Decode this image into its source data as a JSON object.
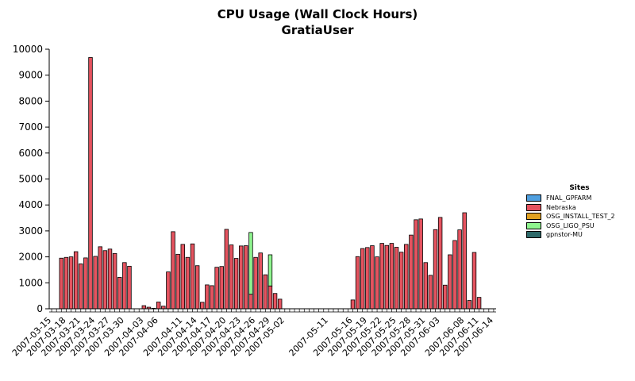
{
  "chart_data": {
    "type": "bar",
    "title": "CPU Usage (Wall Clock Hours)",
    "subtitle": "GratiaUser",
    "xlabel": "",
    "ylabel": "",
    "ylim": [
      0,
      10000
    ],
    "yticks": [
      0,
      1000,
      2000,
      3000,
      4000,
      5000,
      6000,
      7000,
      8000,
      9000,
      10000
    ],
    "grid": false,
    "legend_title": "Sites",
    "legend_position": "right",
    "x_tick_labels": [
      "2007-03-15",
      "2007-03-18",
      "2007-03-21",
      "2007-03-24",
      "2007-03-27",
      "2007-03-30",
      "2007-04-03",
      "2007-04-06",
      "2007-04-11",
      "2007-04-14",
      "2007-04-17",
      "2007-04-20",
      "2007-04-23",
      "2007-04-26",
      "2007-04-29",
      "2007-05-02",
      "2007-05-11",
      "2007-05-16",
      "2007-05-19",
      "2007-05-22",
      "2007-05-25",
      "2007-05-28",
      "2007-05-31",
      "2007-06-03",
      "2007-06-08",
      "2007-06-11",
      "2007-06-14"
    ],
    "categories": [
      "2007-03-15",
      "2007-03-16",
      "2007-03-17",
      "2007-03-18",
      "2007-03-19",
      "2007-03-20",
      "2007-03-21",
      "2007-03-22",
      "2007-03-23",
      "2007-03-24",
      "2007-03-25",
      "2007-03-26",
      "2007-03-27",
      "2007-03-28",
      "2007-03-29",
      "2007-03-30",
      "2007-03-31",
      "2007-04-01",
      "2007-04-02",
      "2007-04-03",
      "2007-04-04",
      "2007-04-05",
      "2007-04-06",
      "2007-04-07",
      "2007-04-08",
      "2007-04-09",
      "2007-04-10",
      "2007-04-11",
      "2007-04-12",
      "2007-04-13",
      "2007-04-14",
      "2007-04-15",
      "2007-04-16",
      "2007-04-17",
      "2007-04-18",
      "2007-04-19",
      "2007-04-20",
      "2007-04-21",
      "2007-04-22",
      "2007-04-23",
      "2007-04-24",
      "2007-04-25",
      "2007-04-26",
      "2007-04-27",
      "2007-04-28",
      "2007-04-29",
      "2007-04-30",
      "2007-05-01",
      "2007-05-02",
      "2007-05-03",
      "2007-05-04",
      "2007-05-05",
      "2007-05-06",
      "2007-05-07",
      "2007-05-08",
      "2007-05-09",
      "2007-05-10",
      "2007-05-11",
      "2007-05-12",
      "2007-05-13",
      "2007-05-14",
      "2007-05-15",
      "2007-05-16",
      "2007-05-17",
      "2007-05-18",
      "2007-05-19",
      "2007-05-20",
      "2007-05-21",
      "2007-05-22",
      "2007-05-23",
      "2007-05-24",
      "2007-05-25",
      "2007-05-26",
      "2007-05-27",
      "2007-05-28",
      "2007-05-29",
      "2007-05-30",
      "2007-05-31",
      "2007-06-01",
      "2007-06-02",
      "2007-06-03",
      "2007-06-04",
      "2007-06-05",
      "2007-06-06",
      "2007-06-07",
      "2007-06-08",
      "2007-06-09",
      "2007-06-10",
      "2007-06-11",
      "2007-06-12",
      "2007-06-13",
      "2007-06-14"
    ],
    "series": [
      {
        "name": "FNAL_GPFARM",
        "color": "#4f9fdf",
        "values": [
          0,
          0,
          0,
          0,
          0,
          0,
          0,
          0,
          0,
          0,
          0,
          0,
          0,
          0,
          0,
          0,
          0,
          0,
          0,
          0,
          0,
          0,
          0,
          0,
          0,
          0,
          0,
          0,
          0,
          0,
          0,
          0,
          0,
          0,
          0,
          0,
          0,
          0,
          0,
          0,
          0,
          0,
          0,
          0,
          0,
          0,
          0,
          0,
          0,
          0,
          0,
          0,
          0,
          0,
          0,
          0,
          0,
          0,
          0,
          0,
          0,
          0,
          0,
          0,
          0,
          0,
          0,
          0,
          0,
          0,
          0,
          0,
          0,
          0,
          0,
          0,
          0,
          0,
          0,
          0,
          0,
          0,
          0,
          0,
          0,
          0,
          0,
          0,
          0,
          0,
          0,
          0
        ]
      },
      {
        "name": "Nebraska",
        "color": "#e5535f",
        "values": [
          0,
          0,
          1950,
          1980,
          2000,
          2200,
          1730,
          1960,
          9680,
          2020,
          2390,
          2240,
          2300,
          2130,
          1210,
          1780,
          1640,
          0,
          0,
          120,
          60,
          20,
          260,
          100,
          1420,
          2970,
          2100,
          2480,
          1980,
          2500,
          1660,
          250,
          920,
          890,
          1600,
          1630,
          3060,
          2460,
          1940,
          2420,
          2430,
          560,
          1980,
          2150,
          1310,
          880,
          590,
          370,
          0,
          0,
          0,
          0,
          0,
          0,
          0,
          0,
          0,
          0,
          0,
          0,
          0,
          0,
          340,
          2010,
          2320,
          2360,
          2430,
          2000,
          2520,
          2440,
          2520,
          2370,
          2180,
          2480,
          2840,
          3430,
          3460,
          1780,
          1290,
          3050,
          3520,
          910,
          2080,
          2630,
          3040,
          3700,
          320,
          2170,
          440,
          0,
          0,
          0
        ]
      },
      {
        "name": "OSG_INSTALL_TEST_2",
        "color": "#e0a020",
        "values": [
          0,
          0,
          0,
          0,
          0,
          0,
          0,
          0,
          0,
          0,
          0,
          0,
          0,
          0,
          0,
          0,
          0,
          0,
          0,
          0,
          0,
          0,
          0,
          0,
          0,
          0,
          0,
          0,
          0,
          0,
          0,
          0,
          0,
          0,
          0,
          0,
          0,
          0,
          0,
          0,
          0,
          0,
          0,
          0,
          0,
          0,
          0,
          0,
          0,
          0,
          0,
          0,
          0,
          0,
          0,
          0,
          0,
          0,
          0,
          0,
          0,
          0,
          0,
          0,
          0,
          0,
          0,
          0,
          0,
          0,
          0,
          0,
          0,
          0,
          0,
          0,
          0,
          0,
          0,
          0,
          0,
          0,
          0,
          0,
          0,
          0,
          0,
          0,
          0,
          0,
          0,
          0
        ]
      },
      {
        "name": "OSG_LIGO_PSU",
        "color": "#8ff58f",
        "values": [
          0,
          0,
          0,
          0,
          0,
          0,
          0,
          0,
          0,
          0,
          0,
          0,
          0,
          0,
          0,
          0,
          0,
          0,
          0,
          0,
          0,
          0,
          0,
          0,
          0,
          0,
          0,
          0,
          0,
          0,
          0,
          0,
          0,
          0,
          0,
          0,
          0,
          0,
          0,
          0,
          0,
          2380,
          0,
          0,
          0,
          1200,
          0,
          0,
          0,
          0,
          0,
          0,
          0,
          0,
          0,
          0,
          0,
          0,
          0,
          0,
          0,
          0,
          0,
          0,
          0,
          0,
          0,
          0,
          0,
          0,
          0,
          0,
          0,
          0,
          0,
          0,
          0,
          0,
          0,
          0,
          0,
          0,
          0,
          0,
          0,
          0,
          0,
          0,
          0,
          0,
          0,
          0
        ]
      },
      {
        "name": "gpnstor-MU",
        "color": "#2e6a6a",
        "values": [
          0,
          0,
          0,
          0,
          0,
          0,
          0,
          0,
          0,
          0,
          0,
          0,
          0,
          0,
          0,
          0,
          0,
          0,
          0,
          0,
          0,
          0,
          0,
          0,
          0,
          0,
          0,
          0,
          0,
          0,
          0,
          0,
          0,
          0,
          0,
          0,
          0,
          0,
          0,
          0,
          0,
          0,
          0,
          0,
          0,
          0,
          0,
          0,
          0,
          0,
          0,
          0,
          0,
          0,
          0,
          0,
          0,
          0,
          0,
          0,
          0,
          0,
          0,
          0,
          0,
          0,
          0,
          0,
          0,
          0,
          0,
          0,
          0,
          0,
          0,
          0,
          0,
          0,
          0,
          0,
          0,
          0,
          0,
          0,
          0,
          0,
          0,
          0,
          0,
          0,
          0,
          0
        ]
      }
    ]
  }
}
